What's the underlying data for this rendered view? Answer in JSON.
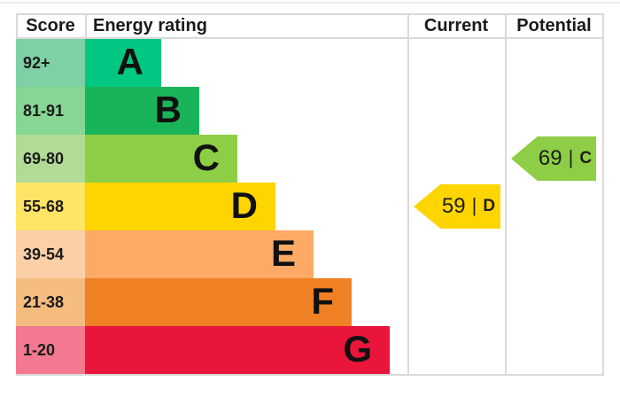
{
  "header": {
    "score": "Score",
    "energy_rating": "Energy rating",
    "current": "Current",
    "potential": "Potential"
  },
  "separator": "|",
  "bands": [
    {
      "range": "92+",
      "letter": "A",
      "color": "#00c781",
      "score_bg": "#7ed0a5"
    },
    {
      "range": "81-91",
      "letter": "B",
      "color": "#19b459",
      "score_bg": "#86d694"
    },
    {
      "range": "69-80",
      "letter": "C",
      "color": "#8dce46",
      "score_bg": "#b2dc96"
    },
    {
      "range": "55-68",
      "letter": "D",
      "color": "#ffd500",
      "score_bg": "#ffe465"
    },
    {
      "range": "39-54",
      "letter": "E",
      "color": "#fcaa65",
      "score_bg": "#fcd0a6"
    },
    {
      "range": "21-38",
      "letter": "F",
      "color": "#ef8023",
      "score_bg": "#f5bc7f"
    },
    {
      "range": "1-20",
      "letter": "G",
      "color": "#e9153b",
      "score_bg": "#f2798f"
    }
  ],
  "current": {
    "value": "59",
    "letter": "D",
    "color": "#ffd500"
  },
  "potential": {
    "value": "69",
    "letter": "C",
    "color": "#8dce46"
  },
  "border_color": "#d9d9d9",
  "chart_data": {
    "type": "bar",
    "title": "Energy rating",
    "categories": [
      "A",
      "B",
      "C",
      "D",
      "E",
      "F",
      "G"
    ],
    "score_ranges": [
      "92+",
      "81-91",
      "69-80",
      "55-68",
      "39-54",
      "21-38",
      "1-20"
    ],
    "band_colors": [
      "#00c781",
      "#19b459",
      "#8dce46",
      "#ffd500",
      "#fcaa65",
      "#ef8023",
      "#e9153b"
    ],
    "columns": [
      "Score",
      "Energy rating",
      "Current",
      "Potential"
    ],
    "current": {
      "score": 59,
      "band": "D"
    },
    "potential": {
      "score": 69,
      "band": "C"
    },
    "legend_position": "none",
    "grid": false
  }
}
